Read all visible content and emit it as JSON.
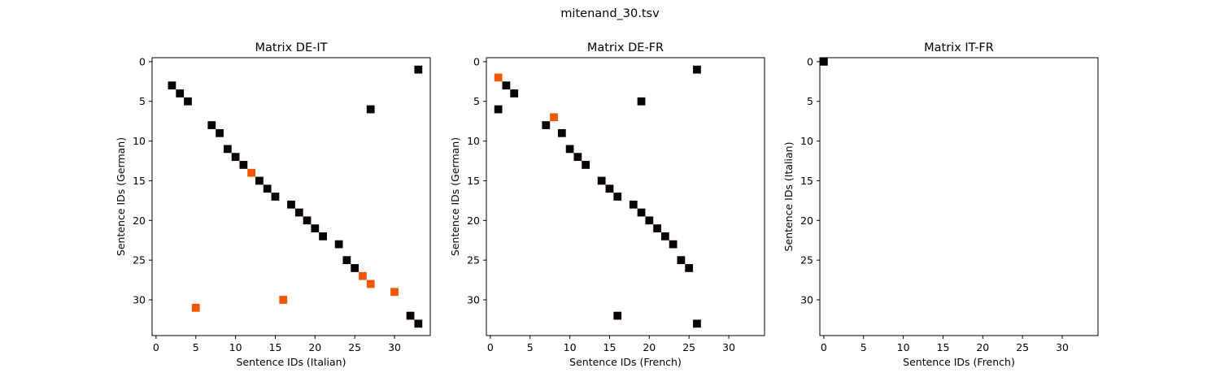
{
  "figure_title": "mitenand_30.tsv",
  "colors": {
    "match": "#0a0405",
    "mismatch": "#f05705",
    "frame": "#000000",
    "background": "#ffffff"
  },
  "chart_data": [
    {
      "type": "heatmap",
      "title": "Matrix DE-IT",
      "xlabel": "Sentence IDs (Italian)",
      "ylabel": "Sentence IDs (German)",
      "xlim": [
        -0.5,
        34.5
      ],
      "ylim": [
        34.5,
        -0.5
      ],
      "xticks": [
        0,
        5,
        10,
        15,
        20,
        25,
        30
      ],
      "yticks": [
        0,
        5,
        10,
        15,
        20,
        25,
        30
      ],
      "grid": false,
      "series": [
        {
          "name": "",
          "color": "#0a0405",
          "points": [
            [
              33,
              1
            ],
            [
              2,
              3
            ],
            [
              3,
              4
            ],
            [
              4,
              5
            ],
            [
              27,
              6
            ],
            [
              7,
              8
            ],
            [
              8,
              9
            ],
            [
              9,
              11
            ],
            [
              10,
              12
            ],
            [
              11,
              13
            ],
            [
              13,
              15
            ],
            [
              14,
              16
            ],
            [
              15,
              17
            ],
            [
              17,
              18
            ],
            [
              18,
              19
            ],
            [
              19,
              20
            ],
            [
              20,
              21
            ],
            [
              21,
              22
            ],
            [
              23,
              23
            ],
            [
              24,
              25
            ],
            [
              25,
              26
            ],
            [
              32,
              32
            ],
            [
              33,
              33
            ]
          ]
        },
        {
          "name": "",
          "color": "#f05705",
          "points": [
            [
              12,
              14
            ],
            [
              26,
              27
            ],
            [
              27,
              28
            ],
            [
              30,
              29
            ],
            [
              16,
              30
            ],
            [
              5,
              31
            ]
          ]
        }
      ]
    },
    {
      "type": "heatmap",
      "title": "Matrix DE-FR",
      "xlabel": "Sentence IDs (French)",
      "ylabel": "Sentence IDs (German)",
      "xlim": [
        -0.5,
        34.5
      ],
      "ylim": [
        34.5,
        -0.5
      ],
      "xticks": [
        0,
        5,
        10,
        15,
        20,
        25,
        30
      ],
      "yticks": [
        0,
        5,
        10,
        15,
        20,
        25,
        30
      ],
      "grid": false,
      "series": [
        {
          "name": "",
          "color": "#0a0405",
          "points": [
            [
              26,
              1
            ],
            [
              2,
              3
            ],
            [
              3,
              4
            ],
            [
              19,
              5
            ],
            [
              1,
              6
            ],
            [
              7,
              8
            ],
            [
              9,
              9
            ],
            [
              10,
              11
            ],
            [
              11,
              12
            ],
            [
              12,
              13
            ],
            [
              14,
              15
            ],
            [
              15,
              16
            ],
            [
              16,
              17
            ],
            [
              18,
              18
            ],
            [
              19,
              19
            ],
            [
              20,
              20
            ],
            [
              21,
              21
            ],
            [
              22,
              22
            ],
            [
              23,
              23
            ],
            [
              24,
              25
            ],
            [
              25,
              26
            ],
            [
              16,
              32
            ],
            [
              26,
              33
            ]
          ]
        },
        {
          "name": "",
          "color": "#f05705",
          "points": [
            [
              1,
              2
            ],
            [
              8,
              7
            ]
          ]
        }
      ]
    },
    {
      "type": "heatmap",
      "title": "Matrix IT-FR",
      "xlabel": "Sentence IDs (French)",
      "ylabel": "Sentence IDs (Italian)",
      "xlim": [
        -0.5,
        34.5
      ],
      "ylim": [
        34.5,
        -0.5
      ],
      "xticks": [
        0,
        5,
        10,
        15,
        20,
        25,
        30
      ],
      "yticks": [
        0,
        5,
        10,
        15,
        20,
        25,
        30
      ],
      "grid": false,
      "series": [
        {
          "name": "",
          "color": "#0a0405",
          "points": [
            [
              0,
              0
            ]
          ]
        }
      ]
    }
  ]
}
